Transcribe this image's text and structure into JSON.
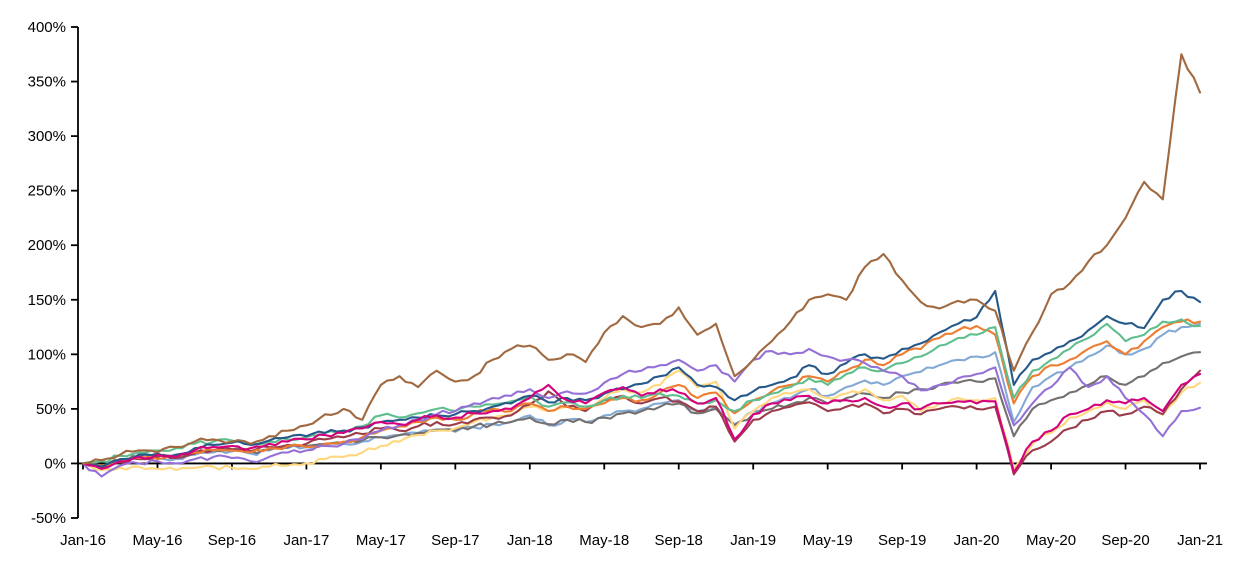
{
  "figure": {
    "kind": "line-chart",
    "background": "#ffffff",
    "axis_color": "#000000",
    "title": ""
  },
  "chart_data": {
    "type": "line",
    "title": "",
    "xlabel": "",
    "ylabel": "",
    "x_start": "Jan-16",
    "x_end": "Jan-21",
    "x_frequency": "monthly",
    "points_per_series": 61,
    "ylim": [
      -50,
      400
    ],
    "y_tick_step": 50,
    "grid": false,
    "legend_position": "none",
    "y_tick_labels": [
      "400%",
      "350%",
      "300%",
      "250%",
      "200%",
      "150%",
      "100%",
      "50%",
      "0%",
      "-50%"
    ],
    "x_tick_labels": [
      "Jan-16",
      "May-16",
      "Sep-16",
      "Jan-17",
      "May-17",
      "Sep-17",
      "Jan-18",
      "May-18",
      "Sep-18",
      "Jan-19",
      "May-19",
      "Sep-19",
      "Jan-20",
      "May-20",
      "Sep-20",
      "Jan-21"
    ],
    "x_tick_every_n_months": 4,
    "series": [
      {
        "name": "light-blue",
        "color": "#84A9D4",
        "values": [
          0,
          -4,
          2,
          4,
          5,
          4,
          8,
          10,
          11,
          9,
          12,
          14,
          15,
          17,
          18,
          20,
          24,
          26,
          28,
          30,
          29,
          33,
          36,
          38,
          44,
          35,
          40,
          38,
          44,
          48,
          50,
          55,
          58,
          48,
          52,
          36,
          48,
          55,
          60,
          68,
          62,
          70,
          76,
          72,
          80,
          84,
          90,
          95,
          98,
          102,
          38,
          70,
          80,
          88,
          98,
          108,
          100,
          105,
          118,
          125,
          128
        ]
      },
      {
        "name": "gray",
        "color": "#757070",
        "values": [
          0,
          -2,
          3,
          6,
          7,
          6,
          10,
          12,
          13,
          11,
          13,
          15,
          16,
          18,
          19,
          21,
          24,
          26,
          28,
          31,
          30,
          34,
          36,
          38,
          42,
          36,
          40,
          38,
          42,
          46,
          48,
          52,
          55,
          46,
          50,
          35,
          45,
          50,
          54,
          60,
          55,
          60,
          64,
          60,
          65,
          68,
          72,
          74,
          75,
          78,
          25,
          50,
          58,
          65,
          72,
          80,
          72,
          80,
          92,
          98,
          102
        ]
      },
      {
        "name": "yellow",
        "color": "#FFD77E",
        "values": [
          0,
          -6,
          -4,
          -3,
          -5,
          -6,
          -4,
          -3,
          -4,
          -5,
          -3,
          -2,
          0,
          4,
          6,
          10,
          16,
          20,
          26,
          30,
          32,
          38,
          42,
          45,
          52,
          48,
          52,
          50,
          60,
          68,
          65,
          72,
          85,
          70,
          75,
          32,
          48,
          60,
          64,
          68,
          60,
          64,
          68,
          58,
          62,
          48,
          55,
          60,
          58,
          60,
          -5,
          18,
          28,
          42,
          48,
          56,
          50,
          58,
          45,
          65,
          74
        ]
      },
      {
        "name": "dark-red",
        "color": "#9C3D4C",
        "values": [
          0,
          -4,
          1,
          4,
          6,
          5,
          9,
          12,
          13,
          11,
          15,
          17,
          18,
          22,
          24,
          27,
          32,
          30,
          34,
          38,
          36,
          40,
          42,
          44,
          54,
          66,
          52,
          48,
          58,
          62,
          55,
          60,
          57,
          48,
          52,
          20,
          40,
          48,
          52,
          56,
          48,
          52,
          55,
          46,
          50,
          45,
          50,
          52,
          50,
          52,
          -10,
          12,
          20,
          32,
          40,
          48,
          45,
          52,
          45,
          68,
          85
        ]
      },
      {
        "name": "orange",
        "color": "#ED7D31",
        "values": [
          0,
          -2,
          3,
          5,
          4,
          6,
          10,
          12,
          12,
          10,
          14,
          16,
          15,
          18,
          20,
          24,
          30,
          34,
          38,
          42,
          40,
          46,
          50,
          48,
          55,
          48,
          52,
          50,
          55,
          60,
          58,
          65,
          72,
          60,
          65,
          46,
          58,
          66,
          72,
          80,
          75,
          85,
          95,
          90,
          100,
          105,
          115,
          122,
          126,
          118,
          55,
          80,
          90,
          95,
          105,
          112,
          100,
          112,
          125,
          130,
          130
        ]
      },
      {
        "name": "green",
        "color": "#5FBE8D",
        "values": [
          0,
          2,
          7,
          10,
          12,
          14,
          18,
          20,
          21,
          18,
          20,
          22,
          24,
          28,
          30,
          34,
          44,
          42,
          46,
          50,
          48,
          52,
          54,
          57,
          62,
          52,
          56,
          52,
          58,
          62,
          60,
          64,
          62,
          55,
          58,
          48,
          58,
          64,
          70,
          78,
          72,
          82,
          88,
          85,
          92,
          98,
          108,
          115,
          118,
          125,
          60,
          85,
          95,
          105,
          115,
          128,
          112,
          118,
          130,
          132,
          126
        ]
      },
      {
        "name": "navy",
        "color": "#26598A",
        "values": [
          0,
          -3,
          4,
          8,
          9,
          8,
          14,
          17,
          19,
          17,
          21,
          24,
          25,
          28,
          30,
          33,
          38,
          40,
          42,
          44,
          45,
          48,
          52,
          55,
          62,
          56,
          60,
          58,
          64,
          68,
          73,
          80,
          88,
          72,
          70,
          58,
          66,
          72,
          78,
          90,
          82,
          92,
          100,
          96,
          105,
          110,
          120,
          128,
          134,
          158,
          72,
          95,
          102,
          112,
          122,
          135,
          128,
          124,
          150,
          158,
          148
        ]
      },
      {
        "name": "purple",
        "color": "#9571D6",
        "values": [
          0,
          -12,
          -2,
          0,
          2,
          0,
          4,
          6,
          5,
          2,
          6,
          10,
          12,
          16,
          18,
          22,
          30,
          35,
          40,
          45,
          48,
          55,
          60,
          62,
          68,
          60,
          66,
          64,
          74,
          82,
          85,
          90,
          95,
          85,
          90,
          75,
          95,
          103,
          100,
          105,
          98,
          95,
          92,
          85,
          80,
          67,
          72,
          78,
          82,
          88,
          35,
          55,
          70,
          88,
          70,
          80,
          60,
          45,
          25,
          48,
          51
        ]
      },
      {
        "name": "magenta",
        "color": "#D4017E",
        "values": [
          0,
          -5,
          2,
          6,
          8,
          6,
          12,
          15,
          16,
          14,
          18,
          20,
          22,
          26,
          28,
          32,
          38,
          36,
          40,
          44,
          42,
          46,
          48,
          50,
          60,
          72,
          58,
          55,
          65,
          70,
          62,
          68,
          65,
          55,
          60,
          22,
          45,
          55,
          58,
          62,
          55,
          58,
          60,
          52,
          55,
          50,
          55,
          57,
          55,
          57,
          -8,
          20,
          30,
          45,
          50,
          58,
          55,
          60,
          48,
          72,
          82
        ]
      },
      {
        "name": "brown",
        "color": "#A0693F",
        "values": [
          0,
          3,
          8,
          12,
          10,
          15,
          20,
          22,
          20,
          18,
          25,
          30,
          35,
          45,
          50,
          40,
          72,
          80,
          70,
          85,
          75,
          80,
          95,
          105,
          108,
          95,
          100,
          93,
          120,
          135,
          125,
          128,
          143,
          118,
          128,
          80,
          95,
          112,
          130,
          150,
          155,
          150,
          180,
          192,
          168,
          148,
          142,
          149,
          150,
          140,
          85,
          120,
          155,
          165,
          185,
          200,
          225,
          258,
          242,
          375,
          340
        ]
      }
    ]
  }
}
